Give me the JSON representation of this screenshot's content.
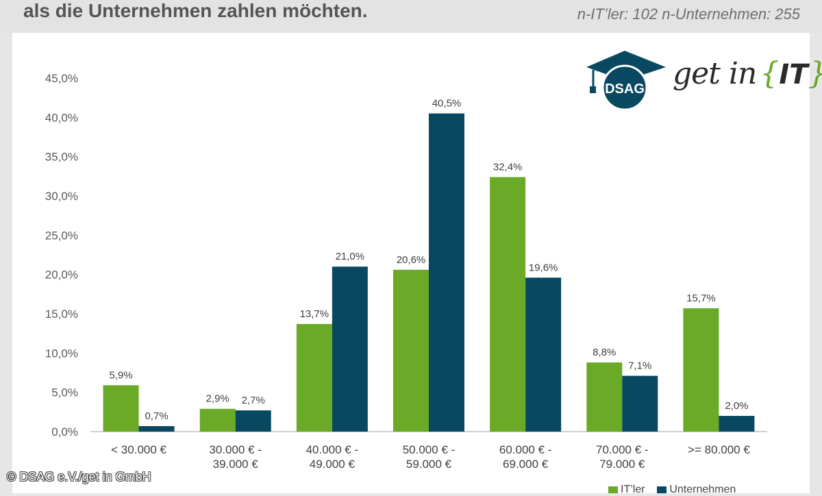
{
  "header": {
    "title": "als die Unternehmen zahlen möchten.",
    "sample_info": "n-IT’ler: 102 n-Unternehmen: 255"
  },
  "logos": {
    "dsag": "DSAG",
    "getin_text": "get in",
    "getin_brace_open": "{",
    "getin_it": "IT",
    "getin_brace_close": "}"
  },
  "copyright": "© DSAG e.V./get in GmbH",
  "chart_data": {
    "type": "bar",
    "categories": [
      [
        "< 30.000 €"
      ],
      [
        "30.000 € -",
        "39.000 €"
      ],
      [
        "40.000 € -",
        "49.000 €"
      ],
      [
        "50.000 € -",
        "59.000 €"
      ],
      [
        "60.000 € -",
        "69.000 €"
      ],
      [
        "70.000 € -",
        "79.000 €"
      ],
      [
        ">= 80.000 €"
      ]
    ],
    "series": [
      {
        "name": "IT’ler",
        "color": "#6aaa26",
        "values": [
          5.9,
          2.9,
          13.7,
          20.6,
          32.4,
          8.8,
          15.7
        ],
        "labels": [
          "5,9%",
          "2,9%",
          "13,7%",
          "20,6%",
          "32,4%",
          "8,8%",
          "15,7%"
        ]
      },
      {
        "name": "Unternehmen",
        "color": "#084860",
        "values": [
          0.7,
          2.7,
          21.0,
          40.5,
          19.6,
          7.1,
          2.0
        ],
        "labels": [
          "0,7%",
          "2,7%",
          "21,0%",
          "40,5%",
          "19,6%",
          "7,1%",
          "2,0%"
        ]
      }
    ],
    "ylim": [
      0,
      45
    ],
    "yticks": [
      0,
      5,
      10,
      15,
      20,
      25,
      30,
      35,
      40,
      45
    ],
    "ytick_labels": [
      "0,0%",
      "5,0%",
      "10,0%",
      "15,0%",
      "20,0%",
      "25,0%",
      "30,0%",
      "35,0%",
      "40,0%",
      "45,0%"
    ],
    "grid": false,
    "legend_position": "bottom-right"
  }
}
